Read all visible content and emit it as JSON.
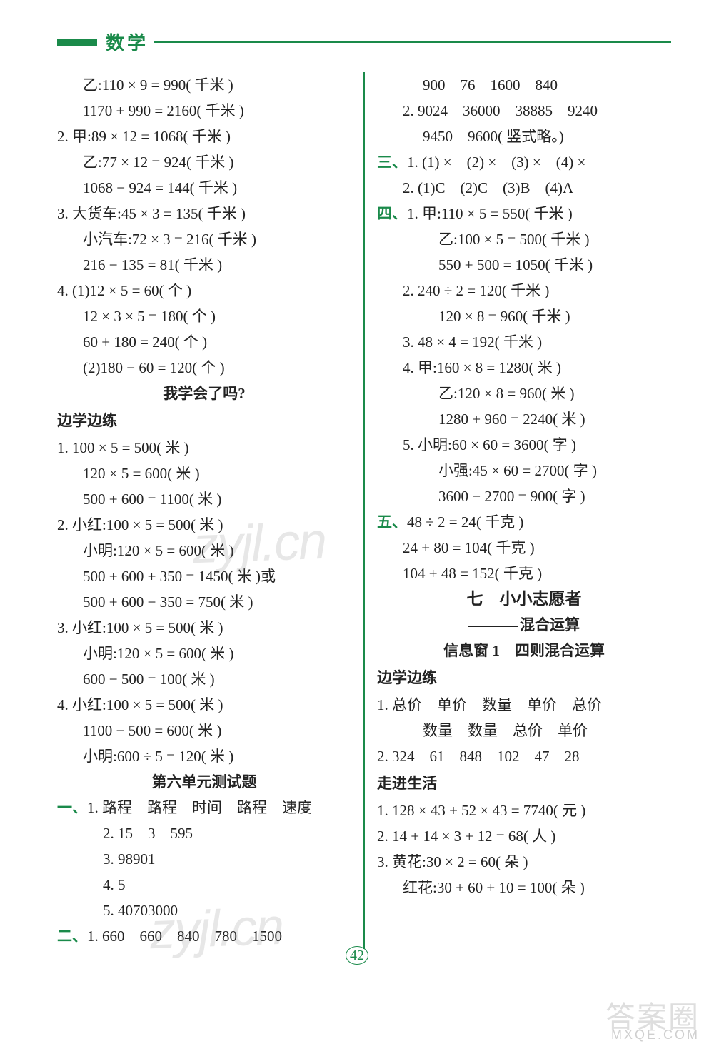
{
  "header": {
    "subject": "数学"
  },
  "left": {
    "l1": "乙:110 × 9 = 990( 千米 )",
    "l2": "1170 + 990 = 2160( 千米 )",
    "l3": "2. 甲:89 × 12 = 1068( 千米 )",
    "l4": "乙:77 × 12 = 924( 千米 )",
    "l5": "1068 − 924 = 144( 千米 )",
    "l6": "3. 大货车:45 × 3 = 135( 千米 )",
    "l7": "小汽车:72 × 3 = 216( 千米 )",
    "l8": "216 − 135 = 81( 千米 )",
    "l9": "4. (1)12 × 5 = 60( 个 )",
    "l10": "12 × 3 × 5 = 180( 个 )",
    "l11": "60 + 180 = 240( 个 )",
    "l12": "(2)180 − 60 = 120( 个 )",
    "q": "我学会了吗?",
    "sec1": "边学边练",
    "b1": "1. 100 × 5 = 500( 米 )",
    "b2": "120 × 5 = 600( 米 )",
    "b3": "500 + 600 = 1100( 米 )",
    "b4": "2. 小红:100 × 5 = 500( 米 )",
    "b5": "小明:120 × 5 = 600( 米 )",
    "b6": "500 + 600 + 350 = 1450( 米 )或",
    "b7": "500 + 600 − 350 = 750( 米 )",
    "b8": "3. 小红:100 × 5 = 500( 米 )",
    "b9": "小明:120 × 5 = 600( 米 )",
    "b10": "600 − 500 = 100( 米 )",
    "b11": "4. 小红:100 × 5 = 500( 米 )",
    "b12": "1100 − 500 = 600( 米 )",
    "b13": "小明:600 ÷ 5 = 120( 米 )",
    "unit6": "第六单元测试题",
    "u1": "一、1. 路程　路程　时间　路程　速度",
    "u2": "2. 15　3　595",
    "u3": "3. 98901",
    "u4": "4. 5",
    "u5": "5. 40703000",
    "u6": "二、1. 660　660　840　780　1500"
  },
  "right": {
    "r1": "900　76　1600　840",
    "r2": "2. 9024　36000　38885　9240",
    "r3": "9450　9600( 竖式略。)",
    "r4": "三、1. (1) ×　(2) ×　(3) ×　(4) ×",
    "r5": "2. (1)C　(2)C　(3)B　(4)A",
    "r6": "四、1. 甲:110 × 5 = 550( 千米 )",
    "r7": "乙:100 × 5 = 500( 千米 )",
    "r8": "550 + 500 = 1050( 千米 )",
    "r9": "2. 240 ÷ 2 = 120( 千米 )",
    "r10": "120 × 8 = 960( 千米 )",
    "r11": "3. 48 × 4 = 192( 千米 )",
    "r12": "4. 甲:160 × 8 = 1280( 米 )",
    "r13": "乙:120 × 8 = 960( 米 )",
    "r14": "1280 + 960 = 2240( 米 )",
    "r15": "5. 小明:60 × 60 = 3600( 字 )",
    "r16": "小强:45 × 60 = 2700( 字 )",
    "r17": "3600 − 2700 = 900( 字 )",
    "r18": "五、48 ÷ 2 = 24( 千克 )",
    "r19": "24 + 80 = 104( 千克 )",
    "r20": "104 + 48 = 152( 千克 )",
    "title7": "七　小小志愿者",
    "sub7": "混合运算",
    "info1": "信息窗 1　四则混合运算",
    "sec2": "边学边练",
    "c1": "1. 总价　单价　数量　单价　总价",
    "c2": "数量　数量　总价　单价",
    "c3": "2. 324　61　848　102　47　28",
    "sec3": "走进生活",
    "d1": "1. 128 × 43 + 52 × 43 = 7740( 元 )",
    "d2": "2. 14 + 14 × 3 + 12 = 68( 人 )",
    "d3": "3. 黄花:30 × 2 = 60( 朵 )",
    "d4": "红花:30 + 60 + 10 = 100( 朵 )"
  },
  "pagenum": "42",
  "wm1": "zyjl.cn",
  "wm2": "zyjl.cn",
  "wm3": "答案圈",
  "wm4": "MXQE.COM"
}
